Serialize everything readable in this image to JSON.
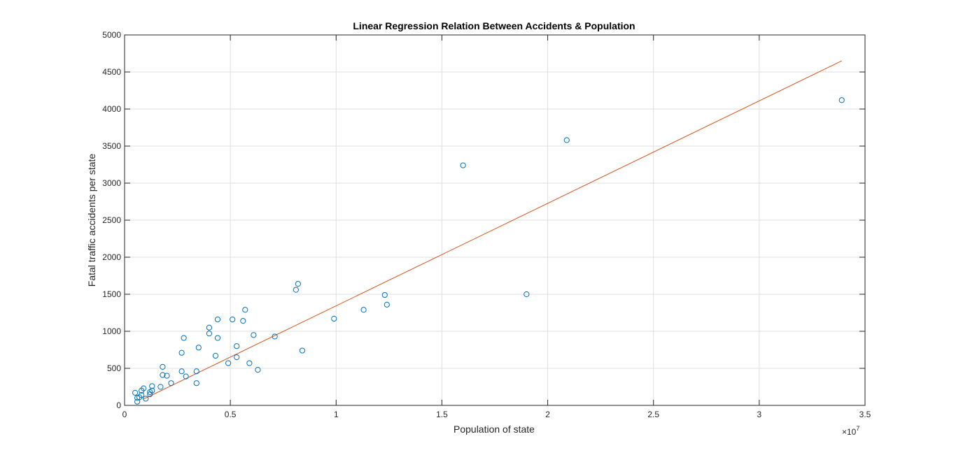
{
  "chart_data": {
    "type": "scatter",
    "title": "Linear Regression Relation Between Accidents & Population",
    "xlabel": "Population of state",
    "ylabel": "Fatal traffic accidents per state",
    "xlim": [
      0,
      3.5
    ],
    "ylim": [
      0,
      5000
    ],
    "x_ticks": [
      0,
      0.5,
      1,
      1.5,
      2,
      2.5,
      3,
      3.5
    ],
    "x_tick_labels": [
      "0",
      "0.5",
      "1",
      "1.5",
      "2",
      "2.5",
      "3",
      "3.5"
    ],
    "y_ticks": [
      0,
      500,
      1000,
      1500,
      2000,
      2500,
      3000,
      3500,
      4000,
      4500,
      5000
    ],
    "y_tick_labels": [
      "0",
      "500",
      "1000",
      "1500",
      "2000",
      "2500",
      "3000",
      "3500",
      "4000",
      "4500",
      "5000"
    ],
    "x_exponent_label": "×10",
    "x_exponent_power": "7",
    "grid": true,
    "series": [
      {
        "type": "scatter",
        "color": "#0072bd",
        "marker": "circle",
        "points": [
          [
            0.05,
            170
          ],
          [
            0.06,
            50
          ],
          [
            0.06,
            100
          ],
          [
            0.07,
            110
          ],
          [
            0.08,
            200
          ],
          [
            0.08,
            140
          ],
          [
            0.09,
            230
          ],
          [
            0.1,
            90
          ],
          [
            0.12,
            150
          ],
          [
            0.12,
            180
          ],
          [
            0.13,
            200
          ],
          [
            0.13,
            260
          ],
          [
            0.17,
            250
          ],
          [
            0.18,
            520
          ],
          [
            0.18,
            410
          ],
          [
            0.2,
            400
          ],
          [
            0.22,
            300
          ],
          [
            0.27,
            460
          ],
          [
            0.27,
            710
          ],
          [
            0.28,
            910
          ],
          [
            0.29,
            390
          ],
          [
            0.34,
            460
          ],
          [
            0.34,
            300
          ],
          [
            0.35,
            780
          ],
          [
            0.4,
            1050
          ],
          [
            0.4,
            970
          ],
          [
            0.43,
            670
          ],
          [
            0.44,
            1160
          ],
          [
            0.44,
            910
          ],
          [
            0.49,
            570
          ],
          [
            0.51,
            1160
          ],
          [
            0.53,
            650
          ],
          [
            0.53,
            800
          ],
          [
            0.56,
            1140
          ],
          [
            0.57,
            1290
          ],
          [
            0.59,
            570
          ],
          [
            0.61,
            950
          ],
          [
            0.63,
            480
          ],
          [
            0.71,
            930
          ],
          [
            0.81,
            1560
          ],
          [
            0.82,
            1640
          ],
          [
            0.84,
            740
          ],
          [
            0.99,
            1170
          ],
          [
            1.13,
            1290
          ],
          [
            1.23,
            1490
          ],
          [
            1.24,
            1360
          ],
          [
            1.6,
            3240
          ],
          [
            1.9,
            1500
          ],
          [
            2.09,
            3580
          ],
          [
            3.39,
            4120
          ]
        ]
      },
      {
        "type": "line",
        "color": "#d95319",
        "points": [
          [
            0.09,
            85
          ],
          [
            3.39,
            4650
          ]
        ]
      }
    ]
  }
}
